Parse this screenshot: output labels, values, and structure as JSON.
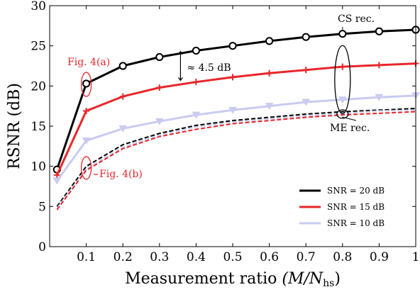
{
  "chart_data": {
    "type": "line",
    "xlabel_main": "Measurement ratio ",
    "xlabel_math": "(M/N",
    "xlabel_sub": "hs",
    "xlabel_close": ")",
    "ylabel": "RSNR (dB)",
    "xlim": [
      0,
      1
    ],
    "ylim": [
      0,
      30
    ],
    "x_ticks": [
      0.1,
      0.2,
      0.3,
      0.4,
      0.5,
      0.6,
      0.7,
      0.8,
      0.9,
      1
    ],
    "x_tick_labels": [
      "0.1",
      "0.2",
      "0.3",
      "0.4",
      "0.5",
      "0.6",
      "0.7",
      "0.8",
      "0.9",
      "1"
    ],
    "y_ticks": [
      0,
      5,
      10,
      15,
      20,
      25,
      30
    ],
    "y_tick_labels": [
      "0",
      "5",
      "10",
      "15",
      "20",
      "25",
      "30"
    ],
    "grid": false,
    "legend_position": "bottom-right",
    "x": [
      0.02,
      0.1,
      0.2,
      0.3,
      0.4,
      0.5,
      0.6,
      0.7,
      0.8,
      0.9,
      1.0
    ],
    "series": [
      {
        "name": "SNR = 20 dB",
        "method": "CS",
        "color": "#000000",
        "marker": "circle",
        "values": [
          9.6,
          20.3,
          22.5,
          23.6,
          24.4,
          25.0,
          25.6,
          26.1,
          26.5,
          26.8,
          27.0
        ]
      },
      {
        "name": "SNR = 15 dB",
        "method": "CS",
        "color": "#e8262a",
        "marker": "plus",
        "values": [
          8.9,
          16.9,
          18.7,
          19.8,
          20.5,
          21.1,
          21.6,
          22.0,
          22.4,
          22.6,
          22.8
        ]
      },
      {
        "name": "SNR = 10 dB",
        "method": "CS",
        "color": "#c9cbf0",
        "marker": "triangle-down",
        "values": [
          8.2,
          13.2,
          14.7,
          15.6,
          16.4,
          17.0,
          17.5,
          18.0,
          18.3,
          18.6,
          18.8
        ]
      },
      {
        "method": "ME",
        "color": "#000000",
        "dash": true,
        "values": [
          5.0,
          10.0,
          12.7,
          14.1,
          15.1,
          15.7,
          16.1,
          16.5,
          16.8,
          17.0,
          17.2
        ]
      },
      {
        "method": "ME",
        "color": "#c9cbf0",
        "dash": true,
        "values": [
          4.8,
          9.7,
          12.4,
          13.9,
          14.9,
          15.5,
          15.9,
          16.3,
          16.6,
          16.9,
          17.0
        ]
      },
      {
        "method": "ME",
        "color": "#e8262a",
        "dash": true,
        "values": [
          4.6,
          9.5,
          12.2,
          13.7,
          14.6,
          15.3,
          15.7,
          16.1,
          16.4,
          16.6,
          16.8
        ]
      }
    ],
    "annotations": {
      "fig4a": "Fig. 4(a)",
      "fig4b": "Fig. 4(b)",
      "cs_rec": "CS rec.",
      "me_rec": "ME rec.",
      "gap": "≈ 4.5 dB"
    }
  }
}
